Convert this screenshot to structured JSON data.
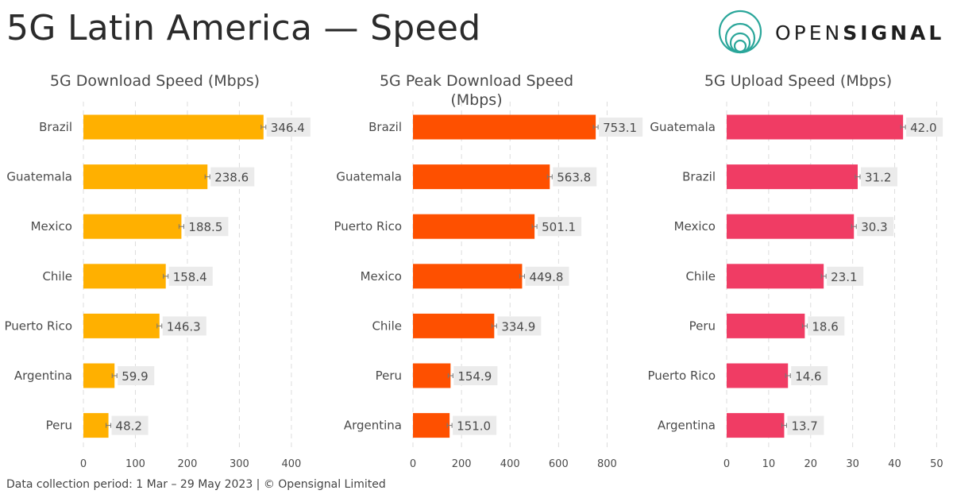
{
  "header": {
    "title": "5G Latin America — Speed",
    "logo_light": "OPEN",
    "logo_bold": "SIGNAL"
  },
  "footer": {
    "text": "Data collection period: 1 Mar – 29 May 2023 |  © Opensignal Limited"
  },
  "colors": {
    "download": "#ffb000",
    "peak": "#fe5000",
    "upload": "#f03c64",
    "value_label_bg": "#ebebeb",
    "grid": "#dddddd",
    "logo": "#2aa69a"
  },
  "chart_data": [
    {
      "type": "bar",
      "orientation": "horizontal",
      "title_lines": [
        "5G Download Speed (Mbps)"
      ],
      "categories": [
        "Brazil",
        "Guatemala",
        "Mexico",
        "Chile",
        "Puerto Rico",
        "Argentina",
        "Peru"
      ],
      "values": [
        346.4,
        238.6,
        188.5,
        158.4,
        146.3,
        59.9,
        48.2
      ],
      "value_labels": [
        "346.4",
        "238.6",
        "188.5",
        "158.4",
        "146.3",
        "59.9",
        "48.2"
      ],
      "xlim": [
        0,
        420
      ],
      "ticks": [
        0,
        100,
        200,
        300,
        400
      ],
      "color_key": "download"
    },
    {
      "type": "bar",
      "orientation": "horizontal",
      "title_lines": [
        "5G Peak Download Speed",
        "(Mbps)"
      ],
      "categories": [
        "Brazil",
        "Guatemala",
        "Puerto Rico",
        "Mexico",
        "Chile",
        "Peru",
        "Argentina"
      ],
      "values": [
        753.1,
        563.8,
        501.1,
        449.8,
        334.9,
        154.9,
        151.0
      ],
      "value_labels": [
        "753.1",
        "563.8",
        "501.1",
        "449.8",
        "334.9",
        "154.9",
        "151.0"
      ],
      "xlim": [
        0,
        900
      ],
      "ticks": [
        0,
        200,
        400,
        600,
        800
      ],
      "color_key": "peak"
    },
    {
      "type": "bar",
      "orientation": "horizontal",
      "title_lines": [
        "5G Upload Speed (Mbps)"
      ],
      "categories": [
        "Guatemala",
        "Brazil",
        "Mexico",
        "Chile",
        "Peru",
        "Puerto Rico",
        "Argentina"
      ],
      "values": [
        42.0,
        31.2,
        30.3,
        23.1,
        18.6,
        14.6,
        13.7
      ],
      "value_labels": [
        "42.0",
        "31.2",
        "30.3",
        "23.1",
        "18.6",
        "14.6",
        "13.7"
      ],
      "xlim": [
        0,
        52
      ],
      "ticks": [
        0,
        10,
        20,
        30,
        40,
        50
      ],
      "color_key": "upload"
    }
  ]
}
